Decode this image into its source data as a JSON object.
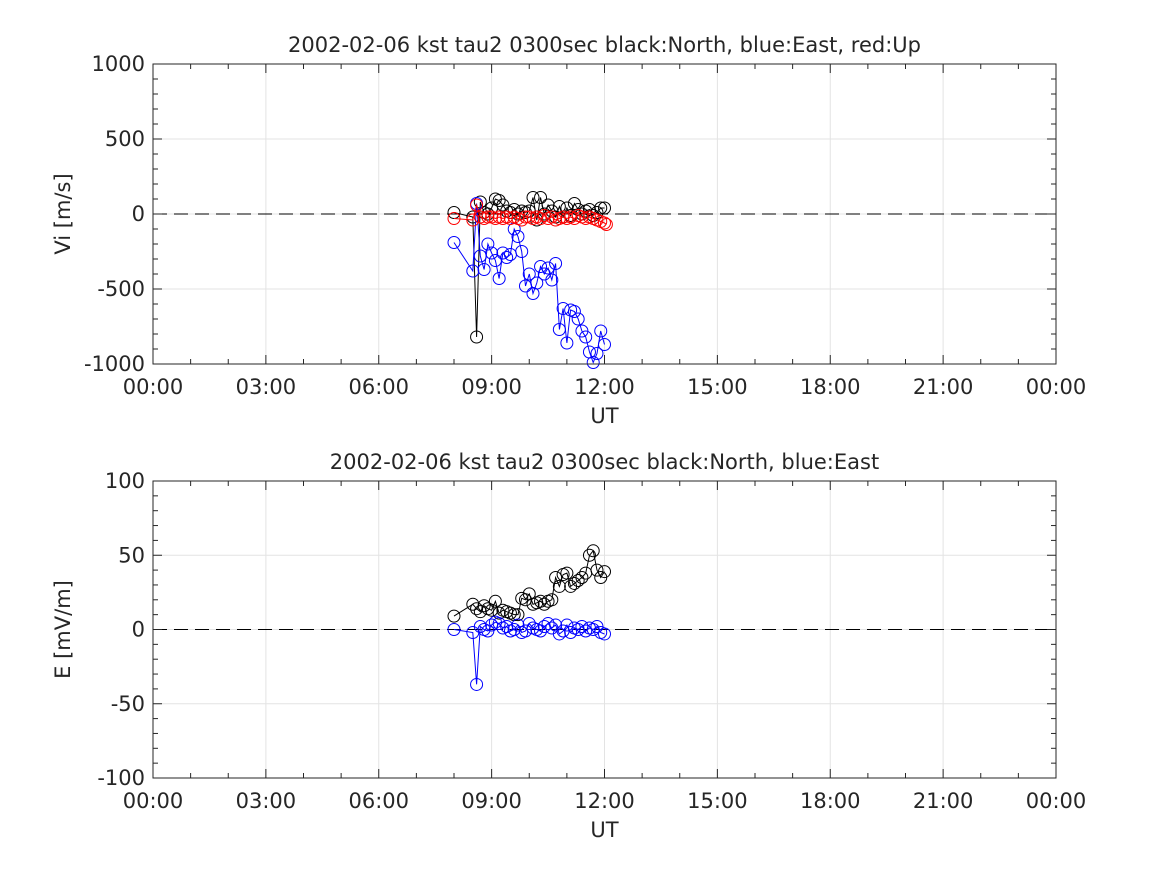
{
  "chart_data": [
    {
      "type": "scatter",
      "title": "2002-02-06 kst tau2 0300sec black:North, blue:East, red:Up",
      "xlabel": "UT",
      "ylabel": "Vi [m/s]",
      "xlim": [
        0,
        24
      ],
      "ylim": [
        -1000,
        1000
      ],
      "x_tick_labels": [
        "00:00",
        "03:00",
        "06:00",
        "09:00",
        "12:00",
        "15:00",
        "18:00",
        "21:00",
        "00:00"
      ],
      "y_tick_labels": [
        "1000",
        "500",
        "0",
        "-500",
        "-1000"
      ],
      "grid": true,
      "zero_line": "dashed",
      "series": [
        {
          "name": "North",
          "color": "#000000",
          "x": [
            8.0,
            8.5,
            8.6,
            8.7,
            8.8,
            8.9,
            9.0,
            9.1,
            9.2,
            9.3,
            9.4,
            9.5,
            9.6,
            9.7,
            9.8,
            9.9,
            10.0,
            10.1,
            10.2,
            10.3,
            10.4,
            10.5,
            10.6,
            10.7,
            10.8,
            10.9,
            11.0,
            11.1,
            11.2,
            11.3,
            11.4,
            11.5,
            11.6,
            11.7,
            11.8,
            11.9,
            12.0
          ],
          "y": [
            10,
            -20,
            -820,
            80,
            10,
            0,
            40,
            100,
            90,
            60,
            20,
            10,
            30,
            0,
            20,
            10,
            20,
            110,
            -40,
            110,
            0,
            60,
            20,
            -20,
            50,
            -20,
            40,
            -10,
            70,
            30,
            0,
            20,
            30,
            -10,
            10,
            40,
            40
          ]
        },
        {
          "name": "East",
          "color": "#0000ff",
          "x": [
            8.0,
            8.5,
            8.6,
            8.7,
            8.8,
            8.9,
            9.0,
            9.1,
            9.2,
            9.3,
            9.4,
            9.5,
            9.6,
            9.7,
            9.8,
            9.9,
            10.0,
            10.1,
            10.2,
            10.3,
            10.4,
            10.5,
            10.6,
            10.7,
            10.8,
            10.9,
            11.0,
            11.1,
            11.2,
            11.3,
            11.4,
            11.5,
            11.6,
            11.7,
            11.8,
            11.9,
            12.0
          ],
          "y": [
            -190,
            -380,
            70,
            -280,
            -370,
            -200,
            -260,
            -310,
            -430,
            -260,
            -290,
            -270,
            -100,
            -150,
            -250,
            -480,
            -400,
            -530,
            -460,
            -350,
            -400,
            -360,
            -440,
            -330,
            -770,
            -630,
            -860,
            -640,
            -650,
            -700,
            -780,
            -820,
            -920,
            -990,
            -930,
            -780,
            -870
          ]
        },
        {
          "name": "Up",
          "color": "#ff0000",
          "x": [
            8.0,
            8.5,
            8.6,
            8.7,
            8.8,
            8.9,
            9.0,
            9.1,
            9.2,
            9.3,
            9.4,
            9.5,
            9.6,
            9.7,
            9.8,
            9.9,
            10.0,
            10.1,
            10.2,
            10.3,
            10.4,
            10.5,
            10.6,
            10.7,
            10.8,
            10.9,
            11.0,
            11.1,
            11.2,
            11.3,
            11.4,
            11.5,
            11.6,
            11.7,
            11.8,
            11.9,
            12.0,
            12.05
          ],
          "y": [
            -30,
            -40,
            60,
            -20,
            -30,
            -20,
            -20,
            -30,
            -20,
            -30,
            -20,
            -30,
            -20,
            -30,
            -40,
            -20,
            -20,
            -30,
            -20,
            -30,
            -10,
            -30,
            -20,
            -40,
            -30,
            -20,
            -30,
            -20,
            -30,
            -10,
            -20,
            -30,
            -20,
            -30,
            -40,
            -50,
            -60,
            -70
          ]
        }
      ]
    },
    {
      "type": "scatter",
      "title": "2002-02-06 kst tau2 0300sec black:North, blue:East",
      "xlabel": "UT",
      "ylabel": "E [mV/m]",
      "xlim": [
        0,
        24
      ],
      "ylim": [
        -100,
        100
      ],
      "x_tick_labels": [
        "00:00",
        "03:00",
        "06:00",
        "09:00",
        "12:00",
        "15:00",
        "18:00",
        "21:00",
        "00:00"
      ],
      "y_tick_labels": [
        "100",
        "50",
        "0",
        "-50",
        "-100"
      ],
      "grid": true,
      "zero_line": "dashed",
      "series": [
        {
          "name": "North",
          "color": "#000000",
          "x": [
            8.0,
            8.5,
            8.6,
            8.7,
            8.8,
            8.9,
            9.0,
            9.1,
            9.2,
            9.3,
            9.4,
            9.5,
            9.6,
            9.7,
            9.8,
            9.9,
            10.0,
            10.1,
            10.2,
            10.3,
            10.4,
            10.5,
            10.6,
            10.7,
            10.8,
            10.9,
            11.0,
            11.1,
            11.2,
            11.3,
            11.4,
            11.5,
            11.6,
            11.7,
            11.8,
            11.9,
            12.0
          ],
          "y": [
            9,
            17,
            14,
            12,
            16,
            14,
            13,
            19,
            11,
            13,
            12,
            11,
            10,
            10,
            21,
            20,
            24,
            17,
            18,
            19,
            17,
            19,
            20,
            35,
            29,
            37,
            38,
            29,
            31,
            33,
            35,
            38,
            50,
            53,
            40,
            35,
            39
          ]
        },
        {
          "name": "East",
          "color": "#0000ff",
          "x": [
            8.0,
            8.5,
            8.6,
            8.7,
            8.8,
            8.9,
            9.0,
            9.1,
            9.2,
            9.3,
            9.4,
            9.5,
            9.6,
            9.7,
            9.8,
            9.9,
            10.0,
            10.1,
            10.2,
            10.3,
            10.4,
            10.5,
            10.6,
            10.7,
            10.8,
            10.9,
            11.0,
            11.1,
            11.2,
            11.3,
            11.4,
            11.5,
            11.6,
            11.7,
            11.8,
            11.9,
            12.0
          ],
          "y": [
            0,
            -2,
            -37,
            2,
            0,
            -1,
            3,
            5,
            4,
            1,
            2,
            -1,
            0,
            3,
            -2,
            -1,
            4,
            1,
            0,
            -1,
            2,
            4,
            1,
            3,
            -3,
            -1,
            3,
            -2,
            1,
            0,
            2,
            -1,
            1,
            0,
            2,
            -2,
            -3
          ]
        }
      ]
    }
  ]
}
